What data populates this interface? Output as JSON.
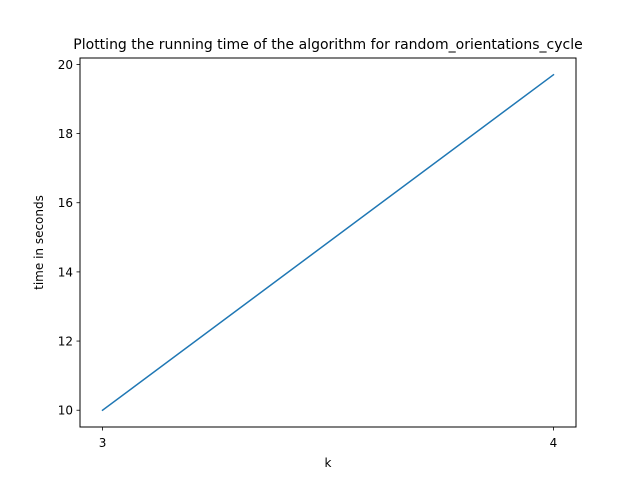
{
  "chart_data": {
    "type": "line",
    "title": "Plotting the running time of the algorithm for random_orientations_cycle",
    "xlabel": "k",
    "ylabel": "time in seconds",
    "x": [
      3,
      4
    ],
    "series": [
      {
        "values": [
          10.0,
          19.7
        ],
        "color": "#1f77b4"
      }
    ],
    "xlim": [
      2.95,
      4.05
    ],
    "ylim": [
      9.515,
      20.185
    ],
    "xticks": [
      "3",
      "4"
    ],
    "yticks": [
      "10",
      "12",
      "14",
      "16",
      "18",
      "20"
    ],
    "grid": false,
    "legend": "none"
  }
}
